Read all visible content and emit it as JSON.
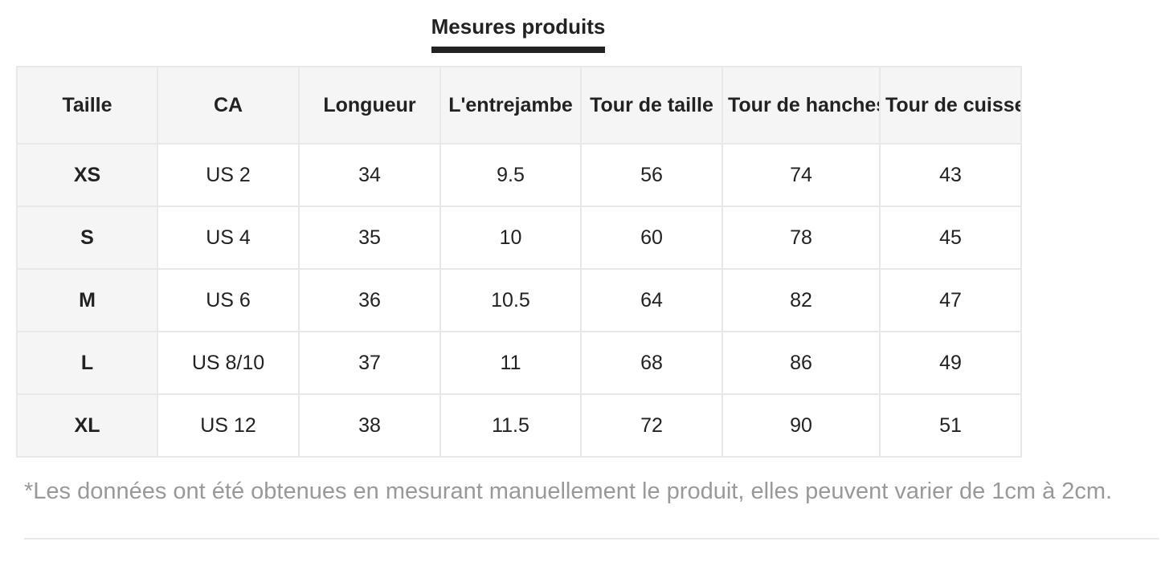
{
  "title": "Mesures produits",
  "table": {
    "headers": [
      "Taille",
      "CA",
      "Longueur",
      "L'entrejambe",
      "Tour de taille",
      "Tour de hanches",
      "Tour de cuisse"
    ],
    "rows": [
      [
        "XS",
        "US 2",
        "34",
        "9.5",
        "56",
        "74",
        "43"
      ],
      [
        "S",
        "US 4",
        "35",
        "10",
        "60",
        "78",
        "45"
      ],
      [
        "M",
        "US 6",
        "36",
        "10.5",
        "64",
        "82",
        "47"
      ],
      [
        "L",
        "US 8/10",
        "37",
        "11",
        "68",
        "86",
        "49"
      ],
      [
        "XL",
        "US 12",
        "38",
        "11.5",
        "72",
        "90",
        "51"
      ]
    ]
  },
  "footnote": "*Les données ont été obtenues en mesurant manuellement le produit, elles peuvent varier de 1cm à 2cm.",
  "colors": {
    "header_background": "#f5f5f5",
    "cell_border": "#e8e8e8",
    "text": "#222222",
    "title_underline": "#222222",
    "footnote_text": "#999999",
    "divider": "#e7e7e7",
    "page_background": "#ffffff"
  }
}
